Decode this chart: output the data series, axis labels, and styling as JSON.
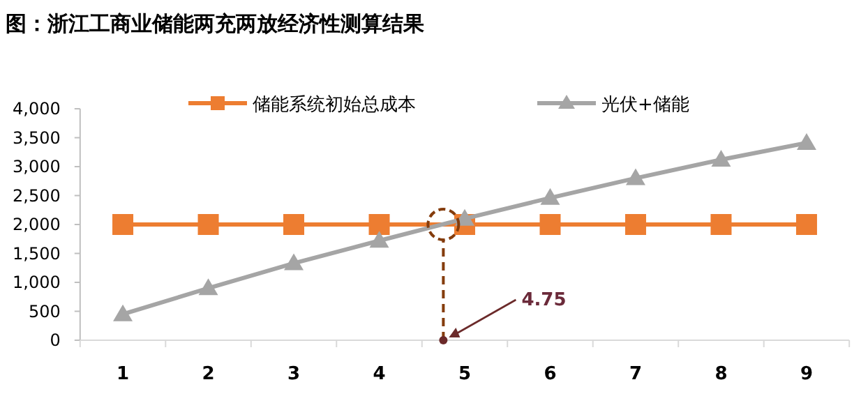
{
  "chart_data": {
    "type": "line",
    "title": "图：浙江工商业储能两充两放经济性测算结果",
    "x": [
      1,
      2,
      3,
      4,
      5,
      6,
      7,
      8,
      9
    ],
    "xlim": [
      0.5,
      9.5
    ],
    "xticks": [
      {
        "value": 0.5,
        "label": null
      },
      1,
      {
        "value": 1.5,
        "label": null
      },
      2,
      {
        "value": 2.5,
        "label": null
      },
      3,
      {
        "value": 3.5,
        "label": null
      },
      4,
      {
        "value": 4.5,
        "label": null
      },
      5,
      {
        "value": 5.5,
        "label": null
      },
      6,
      {
        "value": 6.5,
        "label": null
      },
      7,
      {
        "value": 7.5,
        "label": null
      },
      8,
      {
        "value": 8.5,
        "label": null
      },
      9,
      {
        "value": 9.5,
        "label": null
      }
    ],
    "ylim": [
      0,
      4000
    ],
    "yticks": [
      0,
      500,
      {
        "value": 1000,
        "label": "1,000"
      },
      {
        "value": 1500,
        "label": "1,500"
      },
      {
        "value": 2000,
        "label": "2,000"
      },
      {
        "value": 2500,
        "label": "2,500"
      },
      {
        "value": 3000,
        "label": "3,000"
      },
      {
        "value": 3500,
        "label": "3,500"
      },
      {
        "value": 4000,
        "label": "4,000"
      }
    ],
    "legend": "top",
    "series": [
      {
        "name": "储能系统初始总成本",
        "color": "#ed7d31",
        "marker": "square",
        "values": [
          2000,
          2000,
          2000,
          2000,
          2000,
          2000,
          2000,
          2000,
          2000
        ]
      },
      {
        "name": "光伏+储能",
        "color": "#a5a5a5",
        "marker": "triangle",
        "values": [
          450,
          900,
          1330,
          1720,
          2100,
          2460,
          2800,
          3120,
          3410
        ]
      }
    ],
    "annotations": [
      {
        "text": "4.75",
        "x": 4.75,
        "y": 0
      }
    ]
  }
}
